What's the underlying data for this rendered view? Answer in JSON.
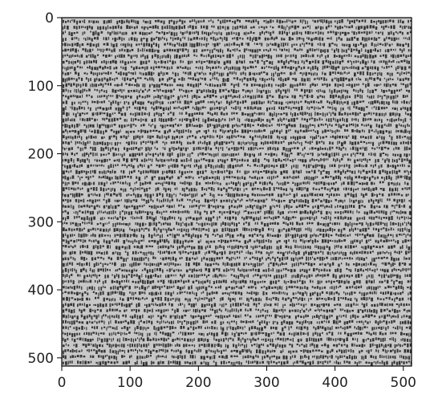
{
  "chart_data": {
    "type": "heatmap",
    "title": "",
    "xlabel": "",
    "ylabel": "",
    "xlim": [
      0,
      512
    ],
    "ylim": [
      512,
      0
    ],
    "x_ticks": [
      0,
      100,
      200,
      300,
      400,
      500
    ],
    "y_ticks": [
      0,
      100,
      200,
      300,
      400,
      500
    ],
    "x_tick_labels": [
      "0",
      "100",
      "200",
      "300",
      "400",
      "500"
    ],
    "y_tick_labels": [
      "0",
      "100",
      "200",
      "300",
      "400",
      "500"
    ],
    "image": {
      "width": 512,
      "height": 512,
      "colormap": "gray",
      "content": "dense rows of small dark text-like glyphs on a light gray background",
      "background_color": "#c8c8c8",
      "glyph_color": "#1a1a1a"
    },
    "grid": false,
    "legend": "none"
  }
}
